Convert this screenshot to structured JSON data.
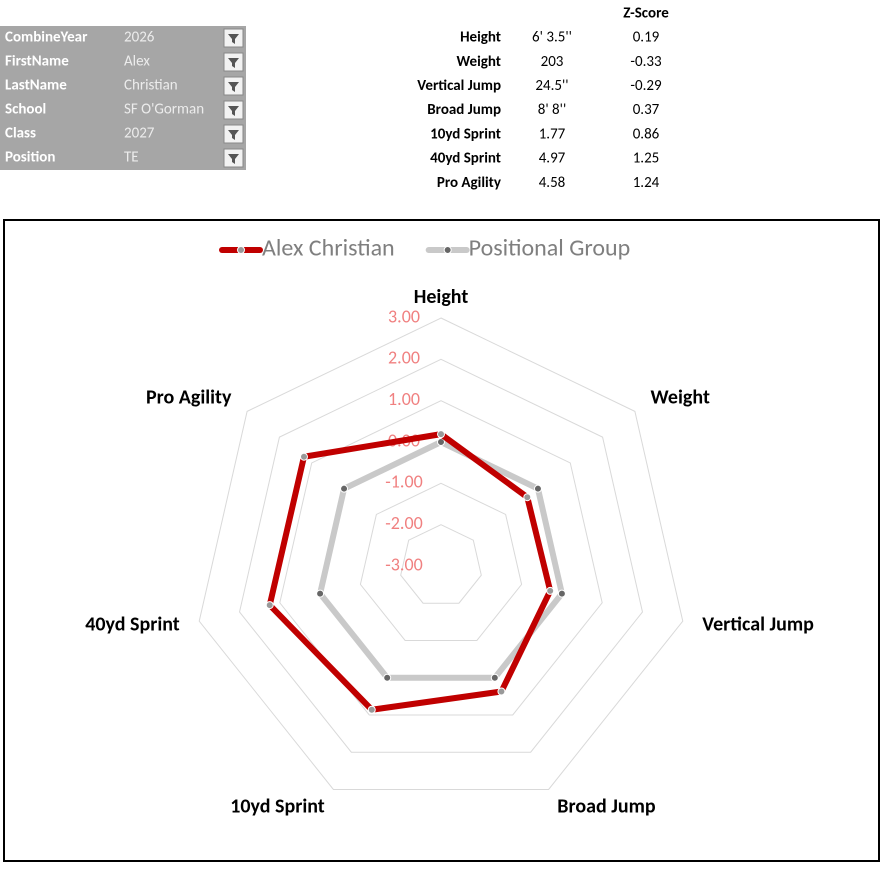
{
  "filters": [
    {
      "label": "CombineYear",
      "value": "2026"
    },
    {
      "label": "FirstName",
      "value": "Alex"
    },
    {
      "label": "LastName",
      "value": "Christian"
    },
    {
      "label": "School",
      "value": "SF O'Gorman"
    },
    {
      "label": "Class",
      "value": "2027"
    },
    {
      "label": "Position",
      "value": "TE"
    }
  ],
  "table": {
    "header": "Z-Score",
    "rows": [
      [
        "Height",
        "6' 3.5''",
        "0.19"
      ],
      [
        "Weight",
        "203",
        "-0.33"
      ],
      [
        "Vertical Jump",
        "24.5''",
        "-0.29"
      ],
      [
        "Broad Jump",
        "8' 8''",
        "0.37"
      ],
      [
        "10yd Sprint",
        "1.77",
        "0.86"
      ],
      [
        "40yd Sprint",
        "4.97",
        "1.25"
      ],
      [
        "Pro Agility",
        "4.58",
        "1.24"
      ]
    ]
  },
  "chart_data": {
    "type": "radar",
    "categories": [
      "Height",
      "Weight",
      "Vertical Jump",
      "Broad Jump",
      "10yd Sprint",
      "40yd Sprint",
      "Pro Agility"
    ],
    "series": [
      {
        "name": "Alex Christian",
        "color": "#c00000",
        "values": [
          0.19,
          -0.33,
          -0.29,
          0.37,
          0.86,
          1.25,
          1.24
        ]
      },
      {
        "name": "Positional Group",
        "color": "#c9c9c9",
        "values": [
          0,
          0,
          0,
          0,
          0,
          0,
          0
        ]
      }
    ],
    "rlim": [
      -3,
      3
    ],
    "rticks": [
      {
        "value": 3,
        "label": "3.00"
      },
      {
        "value": 2,
        "label": "2.00"
      },
      {
        "value": 1,
        "label": "1.00"
      },
      {
        "value": 0,
        "label": "0.00"
      },
      {
        "value": -1,
        "label": "-1.00"
      },
      {
        "value": -2,
        "label": "-2.00"
      },
      {
        "value": -3,
        "label": "-3.00"
      }
    ],
    "legend": "top",
    "tick_color": "#f08080"
  }
}
